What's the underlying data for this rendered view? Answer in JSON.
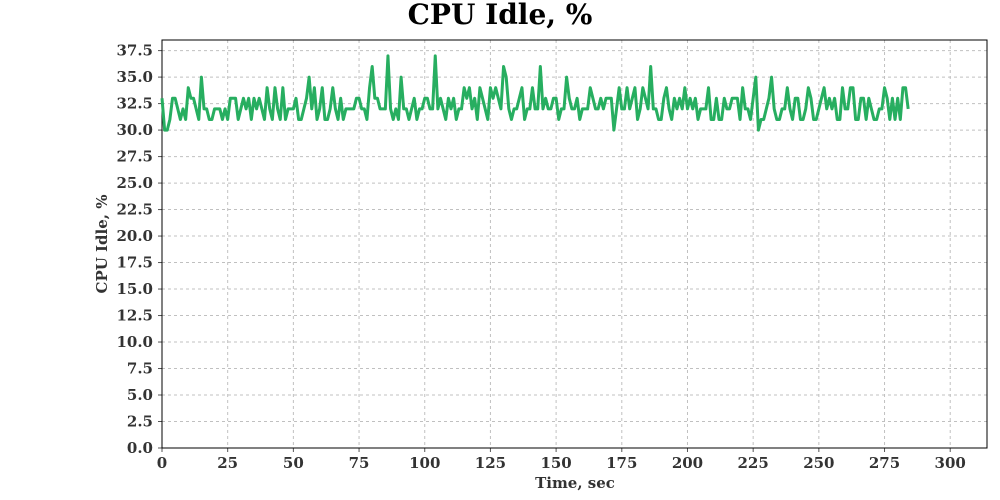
{
  "chart_data": {
    "type": "line",
    "title": "CPU Idle, %",
    "xlabel": "Time, sec",
    "ylabel": "CPU Idle, %",
    "xlim": [
      0,
      314
    ],
    "ylim": [
      0,
      38.5
    ],
    "xticks": [
      0,
      25,
      50,
      75,
      100,
      125,
      150,
      175,
      200,
      225,
      250,
      275,
      300
    ],
    "yticks": [
      0.0,
      2.5,
      5.0,
      7.5,
      10.0,
      12.5,
      15.0,
      17.5,
      20.0,
      22.5,
      25.0,
      27.5,
      30.0,
      32.5,
      35.0,
      37.5
    ],
    "ytick_labels": [
      "0.0",
      "2.5",
      "5.0",
      "7.5",
      "10.0",
      "12.5",
      "15.0",
      "17.5",
      "20.0",
      "22.5",
      "25.0",
      "27.5",
      "30.0",
      "32.5",
      "35.0",
      "37.5"
    ],
    "grid": true,
    "series": [
      {
        "color": "#27ae60",
        "x_start": 0,
        "x_step": 1,
        "values": [
          33,
          30,
          30,
          31,
          33,
          33,
          32,
          31,
          32,
          31,
          34,
          33,
          33,
          32,
          31,
          35,
          32,
          32,
          31,
          31,
          32,
          32,
          32,
          31,
          32,
          31,
          33,
          33,
          33,
          31,
          32,
          33,
          32,
          33,
          31,
          33,
          32,
          33,
          32,
          31,
          34,
          32,
          31,
          34,
          32,
          31,
          34,
          31,
          32,
          32,
          32,
          33,
          31,
          31,
          32,
          33,
          35,
          32,
          34,
          31,
          32,
          34,
          31,
          31,
          32,
          34,
          32,
          31,
          33,
          31,
          32,
          32,
          32,
          32,
          33,
          33,
          32,
          32,
          31,
          34,
          36,
          33,
          33,
          32,
          32,
          32,
          37,
          32,
          31,
          32,
          31,
          35,
          32,
          32,
          31,
          32,
          33,
          31,
          32,
          32,
          33,
          33,
          32,
          32,
          37,
          32,
          33,
          32,
          31,
          33,
          32,
          33,
          31,
          32,
          32,
          34,
          33,
          34,
          32,
          33,
          31,
          34,
          33,
          32,
          31,
          34,
          33,
          34,
          33,
          32,
          36,
          35,
          32,
          31,
          32,
          32,
          33,
          34,
          31,
          32,
          32,
          34,
          32,
          32,
          36,
          32,
          33,
          32,
          32,
          33,
          33,
          31,
          32,
          32,
          35,
          33,
          32,
          32,
          33,
          31,
          32,
          32,
          32,
          34,
          33,
          32,
          32,
          33,
          32,
          33,
          33,
          33,
          30,
          32,
          34,
          32,
          32,
          34,
          32,
          33,
          34,
          31,
          32,
          34,
          33,
          32,
          36,
          32,
          32,
          31,
          31,
          33,
          34,
          32,
          31,
          33,
          32,
          33,
          32,
          34,
          32,
          33,
          32,
          33,
          31,
          32,
          32,
          32,
          34,
          31,
          31,
          33,
          31,
          31,
          33,
          32,
          32,
          33,
          33,
          33,
          31,
          34,
          32,
          32,
          31,
          33,
          35,
          30,
          31,
          31,
          32,
          33,
          35,
          32,
          31,
          31,
          32,
          32,
          34,
          32,
          31,
          33,
          33,
          31,
          31,
          32,
          34,
          33,
          31,
          31,
          32,
          33,
          34,
          32,
          33,
          32,
          33,
          31,
          31,
          34,
          32,
          32,
          34,
          34,
          31,
          31,
          33,
          33,
          31,
          33,
          32,
          31,
          31,
          32,
          32,
          34,
          33,
          31,
          33,
          31,
          33,
          31,
          34,
          34,
          32
        ]
      }
    ]
  }
}
